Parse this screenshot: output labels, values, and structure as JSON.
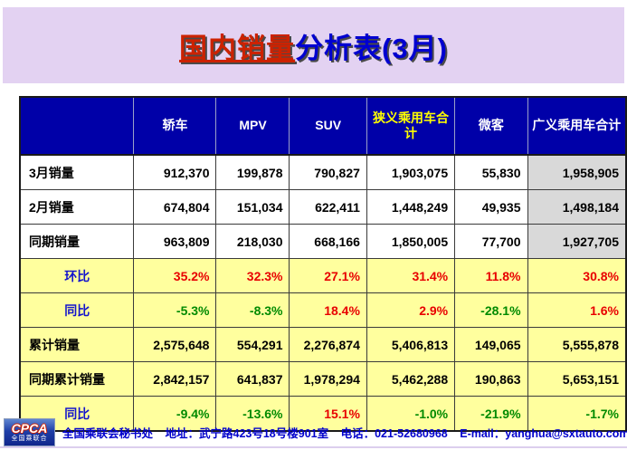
{
  "page": {
    "title_highlight": "国内销量",
    "title_rest": "分析表(3月)"
  },
  "table": {
    "columns": [
      {
        "label": "轿车",
        "color": "white"
      },
      {
        "label": "MPV",
        "color": "white"
      },
      {
        "label": "SUV",
        "color": "white"
      },
      {
        "label": "狭义乘用车合计",
        "color": "yellow"
      },
      {
        "label": "微客",
        "color": "white"
      },
      {
        "label": "广义乘用车合计",
        "color": "white"
      }
    ],
    "rows": [
      {
        "label": "3月销量",
        "label_color": "black",
        "label_align": "left",
        "bg": "white",
        "last_bg": "gray",
        "values": [
          "912,370",
          "199,878",
          "790,827",
          "1,903,075",
          "55,830",
          "1,958,905"
        ],
        "value_colors": [
          "black",
          "black",
          "black",
          "black",
          "black",
          "black"
        ]
      },
      {
        "label": "2月销量",
        "label_color": "black",
        "label_align": "left",
        "bg": "white",
        "last_bg": "gray",
        "values": [
          "674,804",
          "151,034",
          "622,411",
          "1,448,249",
          "49,935",
          "1,498,184"
        ],
        "value_colors": [
          "black",
          "black",
          "black",
          "black",
          "black",
          "black"
        ]
      },
      {
        "label": "同期销量",
        "label_color": "black",
        "label_align": "left",
        "bg": "white",
        "last_bg": "gray",
        "values": [
          "963,809",
          "218,030",
          "668,166",
          "1,850,005",
          "77,700",
          "1,927,705"
        ],
        "value_colors": [
          "black",
          "black",
          "black",
          "black",
          "black",
          "black"
        ]
      },
      {
        "label": "环比",
        "label_color": "blue",
        "label_align": "center",
        "bg": "yellow",
        "last_bg": "yellow",
        "values": [
          "35.2%",
          "32.3%",
          "27.1%",
          "31.4%",
          "11.8%",
          "30.8%"
        ],
        "value_colors": [
          "red",
          "red",
          "red",
          "red",
          "red",
          "red"
        ]
      },
      {
        "label": "同比",
        "label_color": "blue",
        "label_align": "center",
        "bg": "yellow",
        "last_bg": "yellow",
        "values": [
          "-5.3%",
          "-8.3%",
          "18.4%",
          "2.9%",
          "-28.1%",
          "1.6%"
        ],
        "value_colors": [
          "green",
          "green",
          "red",
          "red",
          "green",
          "red"
        ]
      },
      {
        "label": "累计销量",
        "label_color": "black",
        "label_align": "left",
        "bg": "yellow",
        "last_bg": "yellow",
        "values": [
          "2,575,648",
          "554,291",
          "2,276,874",
          "5,406,813",
          "149,065",
          "5,555,878"
        ],
        "value_colors": [
          "black",
          "black",
          "black",
          "black",
          "black",
          "black"
        ]
      },
      {
        "label": "同期累计销量",
        "label_color": "black",
        "label_align": "left",
        "bg": "yellow",
        "last_bg": "yellow",
        "values": [
          "2,842,157",
          "641,837",
          "1,978,294",
          "5,462,288",
          "190,863",
          "5,653,151"
        ],
        "value_colors": [
          "black",
          "black",
          "black",
          "black",
          "black",
          "black"
        ]
      },
      {
        "label": "同比",
        "label_color": "blue",
        "label_align": "center",
        "bg": "yellow",
        "last_bg": "yellow",
        "values": [
          "-9.4%",
          "-13.6%",
          "15.1%",
          "-1.0%",
          "-21.9%",
          "-1.7%"
        ],
        "value_colors": [
          "green",
          "green",
          "red",
          "green",
          "green",
          "green"
        ]
      }
    ]
  },
  "footer": {
    "org": "全国乘联会秘书处",
    "address": "地址：武宁路423号18号楼901室",
    "phone": "电话：021-52680968",
    "email": "E-mail：yanghua@sxtauto.com.cn",
    "logo": {
      "acronym": "CPCA",
      "name": "全国乘联合"
    }
  },
  "colors": {
    "title_red": "#CC2200",
    "title_blue": "#0000D0",
    "band_lavender": "#E3D2F2",
    "header_bg_blue": "#0000A8",
    "header_highlight_yellow": "#FFFF00",
    "row_highlight_yellow": "#FFFF9E",
    "total_column_gray": "#D9D9D9",
    "positive_red": "#E80000",
    "negative_green": "#008A00",
    "label_blue": "#1414CC",
    "footer_blue": "#0000CC"
  }
}
